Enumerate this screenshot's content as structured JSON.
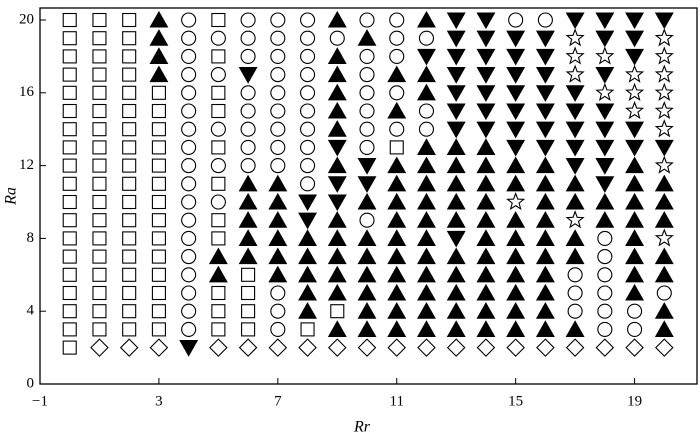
{
  "chart_data": {
    "type": "scatter",
    "x_label": "Rr",
    "y_label": "Ra",
    "xlim": [
      -1,
      21.1
    ],
    "ylim": [
      0,
      20.66
    ],
    "xticks": [
      {
        "value": -1,
        "label": "−1"
      },
      3,
      7,
      11,
      15,
      19
    ],
    "yticks": [
      0,
      4,
      8,
      12,
      16,
      20
    ],
    "color": "#000000",
    "series": [
      {
        "marker": "square",
        "filled": false,
        "x": [
          0,
          0,
          0,
          0,
          0,
          0,
          0,
          0,
          0,
          0,
          0,
          0,
          0,
          0,
          0,
          0,
          0,
          0,
          0,
          1,
          1,
          1,
          1,
          1,
          1,
          1,
          1,
          1,
          1,
          1,
          1,
          1,
          1,
          1,
          1,
          1,
          1,
          2,
          2,
          2,
          2,
          2,
          2,
          2,
          2,
          2,
          2,
          2,
          2,
          2,
          2,
          2,
          2,
          2,
          2,
          3,
          3,
          3,
          3,
          3,
          3,
          3,
          3,
          3,
          3,
          3,
          3,
          3,
          3,
          5,
          5,
          5,
          5,
          5,
          5,
          5,
          5,
          5,
          5,
          5,
          6,
          6,
          6,
          6,
          8,
          9,
          11
        ],
        "y": [
          2,
          3,
          4,
          5,
          6,
          7,
          8,
          9,
          10,
          11,
          12,
          13,
          14,
          15,
          16,
          17,
          18,
          19,
          20,
          3,
          4,
          5,
          6,
          7,
          8,
          9,
          10,
          11,
          12,
          13,
          14,
          15,
          16,
          17,
          18,
          19,
          20,
          3,
          4,
          5,
          6,
          7,
          8,
          9,
          10,
          11,
          12,
          13,
          14,
          15,
          16,
          17,
          18,
          19,
          20,
          3,
          4,
          5,
          6,
          7,
          8,
          9,
          10,
          11,
          12,
          13,
          14,
          15,
          16,
          3,
          4,
          5,
          8,
          9,
          11,
          13,
          15,
          16,
          18,
          20,
          3,
          4,
          5,
          6,
          3,
          4,
          13
        ]
      },
      {
        "marker": "circle",
        "filled": false,
        "x": [
          4,
          4,
          4,
          4,
          4,
          4,
          4,
          4,
          4,
          4,
          4,
          4,
          4,
          4,
          4,
          4,
          4,
          4,
          5,
          5,
          5,
          5,
          5,
          6,
          6,
          6,
          6,
          6,
          6,
          6,
          6,
          7,
          7,
          7,
          7,
          7,
          7,
          7,
          7,
          7,
          7,
          7,
          7,
          8,
          8,
          8,
          8,
          8,
          8,
          8,
          8,
          8,
          8,
          9,
          10,
          10,
          10,
          10,
          10,
          10,
          10,
          10,
          11,
          11,
          11,
          11,
          11,
          12,
          12,
          12,
          15,
          16,
          17,
          17,
          17,
          18,
          18,
          18,
          18,
          18,
          18,
          19,
          19,
          20
        ],
        "y": [
          3,
          4,
          5,
          6,
          7,
          8,
          9,
          10,
          11,
          12,
          13,
          14,
          15,
          16,
          17,
          18,
          19,
          20,
          10,
          12,
          14,
          17,
          19,
          12,
          13,
          14,
          15,
          16,
          18,
          19,
          20,
          3,
          4,
          5,
          12,
          13,
          14,
          15,
          16,
          17,
          18,
          19,
          20,
          11,
          12,
          13,
          14,
          15,
          16,
          17,
          18,
          19,
          20,
          19,
          9,
          13,
          14,
          15,
          16,
          17,
          18,
          20,
          14,
          16,
          18,
          19,
          20,
          14,
          15,
          19,
          20,
          20,
          4,
          5,
          6,
          3,
          4,
          5,
          6,
          7,
          8,
          3,
          4,
          5
        ]
      },
      {
        "marker": "triangle-up",
        "filled": true,
        "x": [
          3,
          3,
          3,
          3,
          5,
          5,
          6,
          6,
          6,
          6,
          6,
          7,
          7,
          7,
          7,
          7,
          7,
          8,
          8,
          8,
          8,
          8,
          9,
          9,
          9,
          9,
          9,
          9,
          9,
          9,
          9,
          9,
          9,
          9,
          9,
          10,
          10,
          10,
          10,
          10,
          10,
          10,
          10,
          11,
          11,
          11,
          11,
          11,
          11,
          11,
          11,
          11,
          11,
          11,
          11,
          12,
          12,
          12,
          12,
          12,
          12,
          12,
          12,
          12,
          12,
          12,
          12,
          12,
          12,
          13,
          13,
          13,
          13,
          13,
          13,
          13,
          13,
          13,
          13,
          14,
          14,
          14,
          14,
          14,
          14,
          14,
          14,
          14,
          14,
          14,
          15,
          15,
          15,
          15,
          15,
          15,
          15,
          15,
          15,
          16,
          16,
          16,
          16,
          16,
          16,
          16,
          16,
          16,
          16,
          17,
          17,
          17,
          17,
          17,
          18,
          18,
          19,
          19,
          19,
          19,
          19,
          19,
          19,
          19,
          20,
          20,
          20,
          20,
          20,
          20,
          20
        ],
        "y": [
          17,
          18,
          19,
          20,
          6,
          7,
          7,
          8,
          9,
          10,
          11,
          6,
          7,
          8,
          9,
          10,
          11,
          4,
          5,
          6,
          7,
          8,
          3,
          5,
          6,
          7,
          8,
          9,
          12,
          14,
          15,
          16,
          17,
          18,
          20,
          3,
          4,
          5,
          6,
          7,
          8,
          10,
          19,
          3,
          4,
          5,
          6,
          7,
          8,
          9,
          10,
          11,
          12,
          15,
          17,
          3,
          4,
          5,
          6,
          7,
          8,
          9,
          10,
          11,
          12,
          13,
          16,
          17,
          20,
          3,
          4,
          5,
          6,
          7,
          9,
          10,
          11,
          12,
          13,
          3,
          4,
          5,
          6,
          7,
          8,
          9,
          10,
          11,
          12,
          13,
          3,
          4,
          5,
          6,
          7,
          8,
          9,
          11,
          12,
          3,
          4,
          5,
          6,
          7,
          8,
          9,
          10,
          11,
          12,
          3,
          7,
          8,
          10,
          11,
          9,
          10,
          5,
          6,
          7,
          8,
          9,
          10,
          11,
          12,
          3,
          4,
          6,
          7,
          9,
          10,
          11
        ]
      },
      {
        "marker": "triangle-down",
        "filled": true,
        "x": [
          4,
          6,
          8,
          8,
          9,
          9,
          9,
          10,
          10,
          12,
          13,
          13,
          13,
          13,
          13,
          13,
          13,
          13,
          14,
          14,
          14,
          14,
          14,
          14,
          14,
          15,
          15,
          15,
          15,
          15,
          15,
          15,
          16,
          16,
          16,
          16,
          16,
          16,
          16,
          17,
          17,
          17,
          17,
          17,
          17,
          18,
          18,
          18,
          18,
          18,
          18,
          18,
          18,
          19,
          19,
          19,
          19,
          19,
          20,
          20
        ],
        "y": [
          2,
          17,
          9,
          10,
          10,
          11,
          13,
          11,
          12,
          18,
          8,
          14,
          15,
          16,
          17,
          18,
          19,
          20,
          14,
          15,
          16,
          17,
          18,
          19,
          20,
          13,
          14,
          15,
          16,
          17,
          18,
          19,
          13,
          14,
          15,
          16,
          17,
          18,
          19,
          12,
          13,
          14,
          15,
          16,
          20,
          11,
          12,
          13,
          14,
          15,
          17,
          19,
          20,
          13,
          14,
          18,
          19,
          20,
          13,
          20
        ]
      },
      {
        "marker": "star",
        "filled": false,
        "x": [
          15,
          17,
          17,
          17,
          17,
          18,
          18,
          19,
          19,
          19,
          20,
          20,
          20,
          20,
          20,
          20,
          20,
          20
        ],
        "y": [
          10,
          9,
          17,
          18,
          19,
          16,
          18,
          15,
          16,
          17,
          8,
          12,
          14,
          15,
          16,
          17,
          18,
          19
        ]
      },
      {
        "marker": "diamond",
        "filled": false,
        "x": [
          1,
          2,
          3,
          5,
          6,
          7,
          8,
          9,
          10,
          11,
          12,
          13,
          14,
          15,
          16,
          17,
          18,
          19,
          20
        ],
        "y": [
          2,
          2,
          2,
          2,
          2,
          2,
          2,
          2,
          2,
          2,
          2,
          2,
          2,
          2,
          2,
          2,
          2,
          2,
          2
        ]
      }
    ]
  }
}
